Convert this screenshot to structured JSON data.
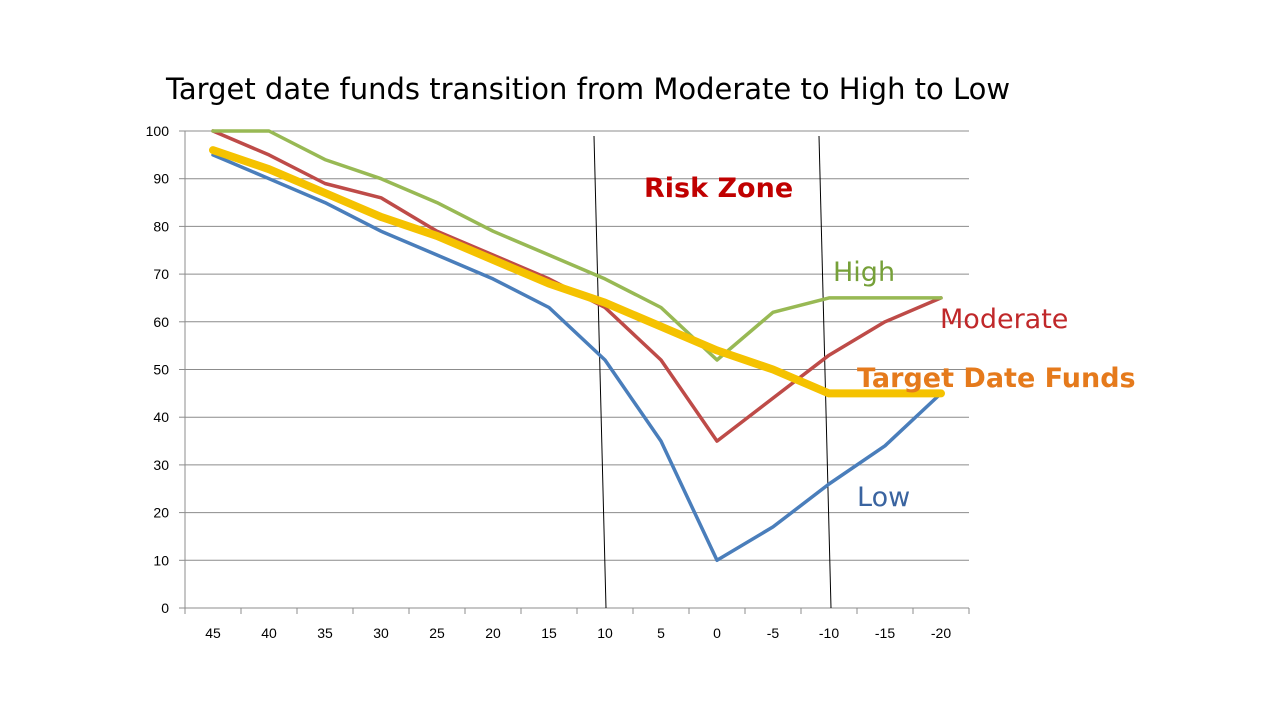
{
  "chart_data": {
    "type": "line",
    "title": "Target date funds transition from Moderate to High to Low",
    "xlabel": "",
    "ylabel": "",
    "categories": [
      "45",
      "40",
      "35",
      "30",
      "25",
      "20",
      "15",
      "10",
      "5",
      "0",
      "-5",
      "-10",
      "-15",
      "-20"
    ],
    "ylim": [
      0,
      100
    ],
    "yticks": [
      0,
      10,
      20,
      30,
      40,
      50,
      60,
      70,
      80,
      90,
      100
    ],
    "grid": "horizontal",
    "series": [
      {
        "name": "Low",
        "color": "#4a7ebb",
        "width": 3.5,
        "values": [
          95,
          90,
          85,
          79,
          74,
          69,
          63,
          52,
          35,
          10,
          17,
          26,
          34,
          45
        ]
      },
      {
        "name": "Moderate",
        "color": "#be4b48",
        "width": 3.5,
        "values": [
          100,
          95,
          89,
          86,
          79,
          74,
          69,
          63,
          52,
          35,
          44,
          53,
          60,
          65
        ]
      },
      {
        "name": "High",
        "color": "#98b954",
        "width": 3.5,
        "values": [
          100,
          100,
          94,
          90,
          85,
          79,
          74,
          69,
          63,
          52,
          62,
          65,
          65,
          65
        ]
      },
      {
        "name": "Target Date Funds",
        "color": "#f5c200",
        "width": 8,
        "values": [
          96,
          92,
          87,
          82,
          78,
          73,
          68,
          64,
          59,
          54,
          50,
          45,
          45,
          45
        ]
      }
    ],
    "annotations": [
      {
        "text": "Risk Zone",
        "color": "#c00000"
      },
      {
        "text": "High",
        "color": "#76a039"
      },
      {
        "text": "Moderate",
        "color": "#c0282a"
      },
      {
        "text": "Target Date Funds",
        "color": "#e57a1c"
      },
      {
        "text": "Low",
        "color": "#3a64a0"
      }
    ]
  }
}
